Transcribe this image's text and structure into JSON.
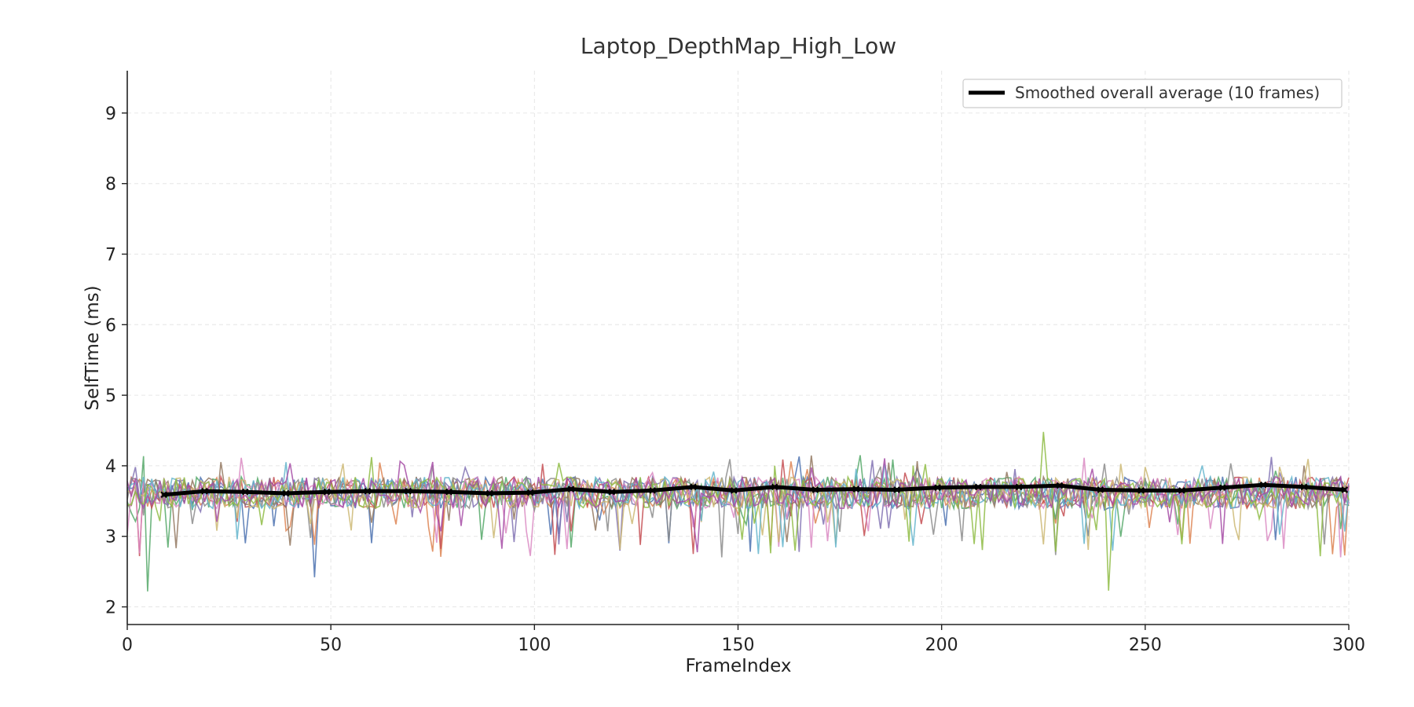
{
  "chart_data": {
    "type": "line",
    "title": "Laptop_DepthMap_High_Low",
    "xlabel": "FrameIndex",
    "ylabel": "SelfTime (ms)",
    "xlim": [
      0,
      300
    ],
    "ylim": [
      1.75,
      9.6
    ],
    "xticks": [
      "0",
      "50",
      "100",
      "150",
      "200",
      "250",
      "300"
    ],
    "yticks": [
      "2",
      "3",
      "4",
      "5",
      "6",
      "7",
      "8",
      "9"
    ],
    "grid": true,
    "legend": {
      "position": "top-right",
      "entries": [
        "Smoothed overall average (10 frames)"
      ]
    },
    "raw_series_colors": [
      "#4c72b0",
      "#dd8452",
      "#55a868",
      "#c44e52",
      "#8172b3",
      "#937860",
      "#da8bc3",
      "#8c8c8c",
      "#ccb974",
      "#64b5cd",
      "#8fbc45",
      "#a64ca6"
    ],
    "raw_series_note_count": 12,
    "series": [
      {
        "name": "Smoothed overall average (10 frames)",
        "color": "#000000",
        "x": [
          9,
          19,
          29,
          39,
          49,
          59,
          69,
          79,
          89,
          99,
          109,
          119,
          129,
          139,
          149,
          159,
          169,
          179,
          189,
          199,
          209,
          219,
          229,
          239,
          249,
          259,
          269,
          279,
          289,
          299
        ],
        "y": [
          3.59,
          3.64,
          3.63,
          3.61,
          3.63,
          3.64,
          3.64,
          3.63,
          3.61,
          3.62,
          3.67,
          3.63,
          3.65,
          3.7,
          3.65,
          3.7,
          3.66,
          3.67,
          3.66,
          3.69,
          3.7,
          3.7,
          3.72,
          3.66,
          3.65,
          3.65,
          3.69,
          3.73,
          3.7,
          3.66
        ]
      }
    ]
  }
}
